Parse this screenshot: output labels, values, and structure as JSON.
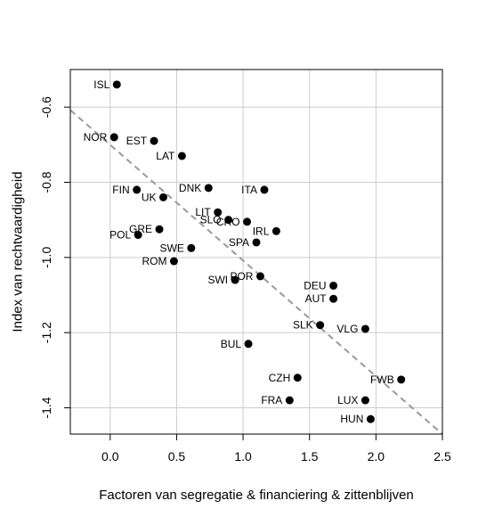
{
  "chart_data": {
    "type": "scatter",
    "xlabel": "Factoren van segregatie & financiering & zittenblijven",
    "ylabel": "Index van rechtvaardigheid",
    "xlim": [
      -0.3,
      2.5
    ],
    "ylim": [
      -1.47,
      -0.5
    ],
    "xticks": [
      0.0,
      0.5,
      1.0,
      1.5,
      2.0,
      2.5
    ],
    "xtick_labels": [
      "0.0",
      "0.5",
      "1.0",
      "1.5",
      "2.0",
      "2.5"
    ],
    "yticks": [
      -0.6,
      -0.8,
      -1.0,
      -1.2,
      -1.4
    ],
    "ytick_labels": [
      "-0.6",
      "-0.8",
      "-1.0",
      "-1.2",
      "-1.4"
    ],
    "grid": true,
    "trendline": {
      "style": "dashed",
      "x": [
        -0.3,
        2.5
      ],
      "y": [
        -0.608,
        -1.47
      ]
    },
    "points": [
      {
        "label": "ISL",
        "x": 0.05,
        "y": -0.54
      },
      {
        "label": "NOR",
        "x": 0.03,
        "y": -0.68
      },
      {
        "label": "EST",
        "x": 0.33,
        "y": -0.69
      },
      {
        "label": "LAT",
        "x": 0.54,
        "y": -0.73
      },
      {
        "label": "FIN",
        "x": 0.2,
        "y": -0.82
      },
      {
        "label": "DNK",
        "x": 0.74,
        "y": -0.815
      },
      {
        "label": "ITA",
        "x": 1.16,
        "y": -0.82
      },
      {
        "label": "UK",
        "x": 0.4,
        "y": -0.84
      },
      {
        "label": "LIT",
        "x": 0.81,
        "y": -0.88
      },
      {
        "label": "SLO",
        "x": 0.89,
        "y": -0.9
      },
      {
        "label": "CRO",
        "x": 1.03,
        "y": -0.905
      },
      {
        "label": "GRE",
        "x": 0.37,
        "y": -0.925
      },
      {
        "label": "IRL",
        "x": 1.25,
        "y": -0.93
      },
      {
        "label": "POL",
        "x": 0.21,
        "y": -0.94
      },
      {
        "label": "SPA",
        "x": 1.1,
        "y": -0.96
      },
      {
        "label": "SWE",
        "x": 0.61,
        "y": -0.975
      },
      {
        "label": "ROM",
        "x": 0.48,
        "y": -1.01
      },
      {
        "label": "POR",
        "x": 1.13,
        "y": -1.05
      },
      {
        "label": "SWI",
        "x": 0.94,
        "y": -1.06
      },
      {
        "label": "DEU",
        "x": 1.68,
        "y": -1.075
      },
      {
        "label": "AUT",
        "x": 1.68,
        "y": -1.11
      },
      {
        "label": "SLK",
        "x": 1.58,
        "y": -1.18
      },
      {
        "label": "VLG",
        "x": 1.92,
        "y": -1.19
      },
      {
        "label": "BUL",
        "x": 1.04,
        "y": -1.23
      },
      {
        "label": "CZH",
        "x": 1.41,
        "y": -1.32
      },
      {
        "label": "FWB",
        "x": 2.19,
        "y": -1.325
      },
      {
        "label": "FRA",
        "x": 1.35,
        "y": -1.38
      },
      {
        "label": "LUX",
        "x": 1.92,
        "y": -1.38
      },
      {
        "label": "HUN",
        "x": 1.96,
        "y": -1.43
      }
    ]
  }
}
